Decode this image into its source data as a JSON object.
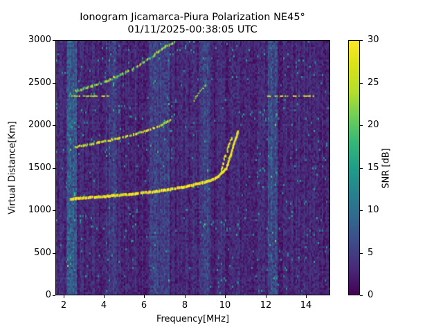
{
  "chart_data": {
    "type": "heatmap",
    "title": "Ionogram Jicamarca-Piura Polarization NE45°",
    "subtitle": "01/11/2025-00:38:05 UTC",
    "xlabel": "Frequency[MHz]",
    "ylabel": "Virtual Distance[Km]",
    "xlim": [
      1.6,
      15.2
    ],
    "ylim": [
      0,
      3000
    ],
    "xticks": [
      2,
      4,
      6,
      8,
      10,
      12,
      14
    ],
    "yticks": [
      0,
      500,
      1000,
      1500,
      2000,
      2500,
      3000
    ],
    "colorbar": {
      "label": "SNR [dB]",
      "range": [
        0,
        30
      ],
      "ticks": [
        0,
        5,
        10,
        15,
        20,
        25,
        30
      ],
      "colormap": "viridis"
    },
    "grid": false,
    "legend": null,
    "traces": [
      {
        "name": "1-hop F trace (strong)",
        "points": [
          [
            2.3,
            1140
          ],
          [
            3,
            1155
          ],
          [
            4,
            1170
          ],
          [
            5,
            1190
          ],
          [
            6,
            1215
          ],
          [
            7,
            1245
          ],
          [
            8,
            1285
          ],
          [
            9,
            1340
          ],
          [
            9.6,
            1400
          ],
          [
            10.0,
            1500
          ],
          [
            10.2,
            1650
          ],
          [
            10.4,
            1800
          ],
          [
            10.6,
            1950
          ]
        ]
      },
      {
        "name": "1-hop F split (extraordinary)",
        "points": [
          [
            9.7,
            1450
          ],
          [
            9.9,
            1600
          ],
          [
            10.1,
            1750
          ],
          [
            10.3,
            1880
          ]
        ]
      },
      {
        "name": "2-hop trace",
        "points": [
          [
            2.5,
            1750
          ],
          [
            3,
            1770
          ],
          [
            4,
            1820
          ],
          [
            5,
            1870
          ],
          [
            6,
            1940
          ],
          [
            6.6,
            1990
          ],
          [
            7.3,
            2080
          ]
        ]
      },
      {
        "name": "3-hop trace",
        "points": [
          [
            2.5,
            2400
          ],
          [
            3,
            2440
          ],
          [
            4,
            2520
          ],
          [
            5,
            2620
          ],
          [
            6,
            2760
          ],
          [
            6.8,
            2900
          ],
          [
            7.5,
            3000
          ]
        ]
      },
      {
        "name": "fragment near 8.5 MHz",
        "points": [
          [
            8.4,
            2300
          ],
          [
            8.7,
            2400
          ],
          [
            9.0,
            2500
          ]
        ]
      },
      {
        "name": "horizontal interference line",
        "points": [
          [
            2.1,
            2350
          ],
          [
            4.2,
            2350
          ],
          [
            12.0,
            2350
          ],
          [
            14.4,
            2350
          ]
        ]
      },
      {
        "name": "vertical noise band",
        "points": [
          [
            12.3,
            0
          ],
          [
            12.3,
            3000
          ]
        ]
      }
    ]
  }
}
